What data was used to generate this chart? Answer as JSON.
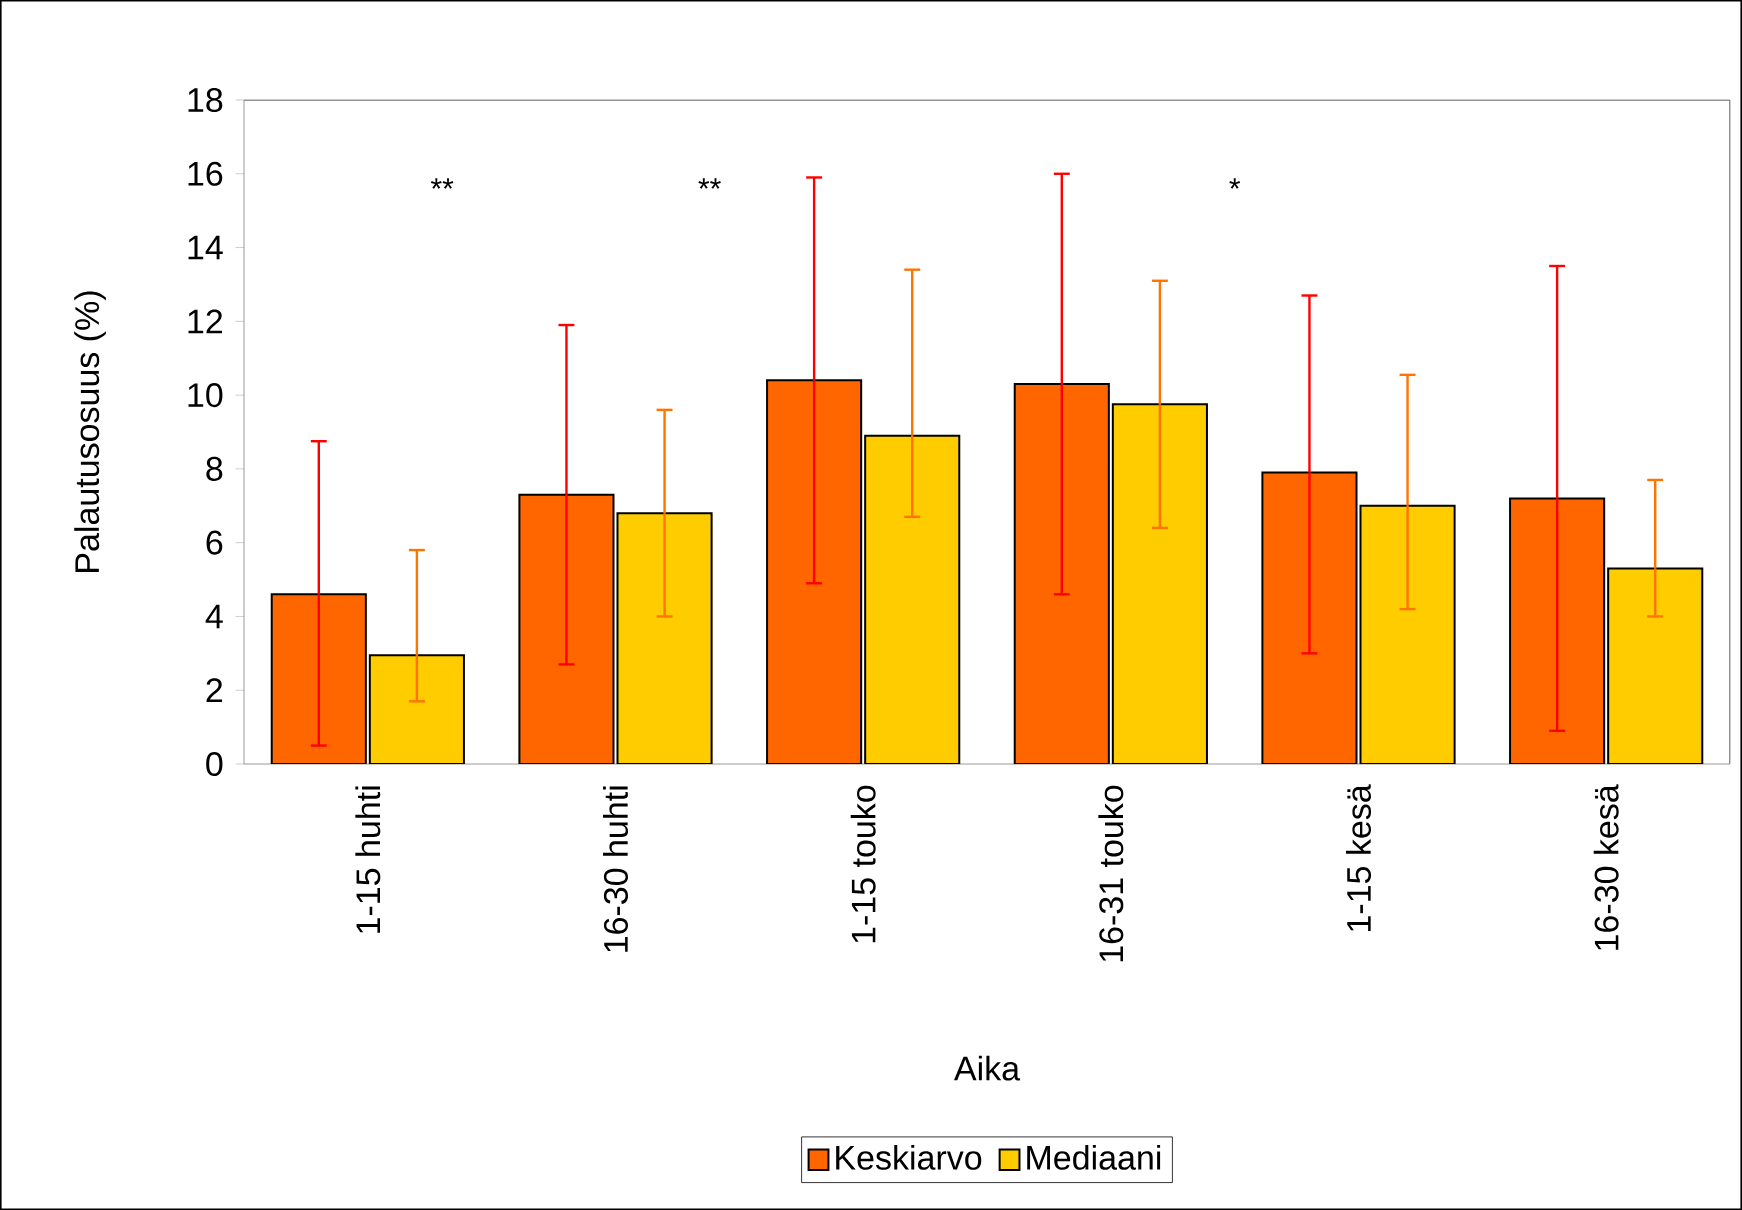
{
  "chart_data": {
    "type": "bar",
    "xlabel": "Aika",
    "ylabel": "Palautusosuus (%)",
    "categories": [
      "1-15 huhti",
      "16-30 huhti",
      "1-15 touko",
      "16-31 touko",
      "1-15 kesä",
      "16-30 kesä"
    ],
    "series": [
      {
        "name": "Keskiarvo",
        "color": "#ff6600",
        "values": [
          4.6,
          7.3,
          10.4,
          10.3,
          7.9,
          7.2
        ],
        "errors": [
          [
            0.5,
            8.75
          ],
          [
            2.7,
            11.9
          ],
          [
            4.9,
            15.9
          ],
          [
            4.6,
            16.0
          ],
          [
            3.0,
            12.7
          ],
          [
            0.9,
            13.5
          ]
        ]
      },
      {
        "name": "Mediaani",
        "color": "#ffcc00",
        "values": [
          2.95,
          6.8,
          8.9,
          9.75,
          7.0,
          5.3
        ],
        "errors": [
          [
            1.7,
            5.8
          ],
          [
            4.0,
            9.6
          ],
          [
            6.7,
            13.4
          ],
          [
            6.4,
            13.1
          ],
          [
            4.2,
            10.55
          ],
          [
            4.0,
            7.7
          ]
        ]
      }
    ],
    "ylim": [
      0,
      18
    ],
    "yticks": [
      0,
      2,
      4,
      6,
      8,
      10,
      12,
      14,
      16,
      18
    ],
    "annotations": [
      "**",
      "**",
      "*"
    ],
    "legend": "bottom",
    "grid": false
  }
}
